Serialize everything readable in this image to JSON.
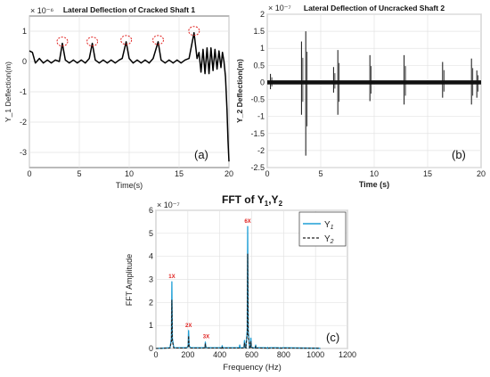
{
  "chart_data": [
    {
      "type": "line",
      "title": "Lateral Deflection of Cracked Shaft 1",
      "xlabel": "Time(s)",
      "ylabel": "Y_1 Deflection(m)",
      "y_exponent": "× 10⁻⁶",
      "xlim": [
        0,
        20
      ],
      "ylim": [
        -3.5,
        1.5
      ],
      "x_ticks": [
        "0",
        "5",
        "10",
        "15",
        "20"
      ],
      "y_ticks": [
        "1",
        "0",
        "-1",
        "-2",
        "-3"
      ],
      "panel_label": "(a)",
      "series": [
        {
          "values": [
            [
              0.0,
              0.35
            ],
            [
              0.3,
              0.3
            ],
            [
              0.6,
              -0.05
            ],
            [
              1.0,
              0.1
            ],
            [
              1.4,
              -0.05
            ],
            [
              1.8,
              0.05
            ],
            [
              2.2,
              -0.05
            ],
            [
              2.6,
              0.05
            ],
            [
              3.0,
              0.0
            ],
            [
              3.3,
              0.6
            ],
            [
              3.6,
              0.05
            ],
            [
              4.0,
              -0.05
            ],
            [
              4.4,
              0.05
            ],
            [
              4.8,
              -0.05
            ],
            [
              5.2,
              0.05
            ],
            [
              5.6,
              -0.05
            ],
            [
              6.0,
              0.1
            ],
            [
              6.3,
              0.6
            ],
            [
              6.6,
              0.05
            ],
            [
              7.0,
              -0.05
            ],
            [
              7.4,
              0.05
            ],
            [
              7.8,
              -0.05
            ],
            [
              8.2,
              0.05
            ],
            [
              8.6,
              -0.05
            ],
            [
              9.0,
              0.05
            ],
            [
              9.3,
              0.1
            ],
            [
              9.7,
              0.65
            ],
            [
              10.0,
              0.1
            ],
            [
              10.4,
              -0.05
            ],
            [
              10.8,
              0.05
            ],
            [
              11.2,
              -0.05
            ],
            [
              11.6,
              0.05
            ],
            [
              12.0,
              -0.05
            ],
            [
              12.4,
              0.1
            ],
            [
              12.9,
              0.65
            ],
            [
              13.2,
              0.05
            ],
            [
              13.6,
              -0.05
            ],
            [
              14.0,
              0.05
            ],
            [
              14.4,
              -0.05
            ],
            [
              14.8,
              0.05
            ],
            [
              15.2,
              -0.05
            ],
            [
              15.6,
              0.05
            ],
            [
              16.0,
              0.1
            ],
            [
              16.5,
              0.95
            ],
            [
              16.8,
              0.1
            ],
            [
              17.0,
              0.3
            ],
            [
              17.2,
              -0.35
            ],
            [
              17.4,
              0.4
            ],
            [
              17.6,
              -0.4
            ],
            [
              17.8,
              0.45
            ],
            [
              18.0,
              -0.4
            ],
            [
              18.2,
              0.45
            ],
            [
              18.4,
              -0.3
            ],
            [
              18.6,
              0.4
            ],
            [
              18.8,
              -0.25
            ],
            [
              19.0,
              0.35
            ],
            [
              19.2,
              -0.2
            ],
            [
              19.35,
              0.3
            ],
            [
              19.5,
              0.0
            ],
            [
              19.65,
              -0.5
            ],
            [
              19.8,
              -1.6
            ],
            [
              19.9,
              -2.6
            ],
            [
              20.0,
              -3.3
            ]
          ]
        }
      ],
      "annotations": [
        "red dashed circles around periodic peaks at ~3.3 s, 6.3 s, 9.7 s, 12.9 s, 16.5 s"
      ]
    },
    {
      "type": "line",
      "title": "Lateral Deflection of Uncracked Shaft 2",
      "xlabel": "Time (s)",
      "ylabel": "Y_2 Deflection(m)",
      "y_exponent": "× 10⁻⁷",
      "xlim": [
        0,
        20
      ],
      "ylim": [
        -2.5,
        2.0
      ],
      "x_ticks": [
        "0",
        "5",
        "10",
        "15",
        "20"
      ],
      "y_ticks": [
        "2",
        "1.5",
        "1",
        "0.5",
        "0",
        "-0.5",
        "-1",
        "-1.5",
        "-2",
        "-2.5"
      ],
      "panel_label": "(b)",
      "band_amplitude": 0.06,
      "spikes": [
        {
          "x": 0.3,
          "max": 0.25,
          "min": -0.2
        },
        {
          "x": 3.2,
          "max": 1.2,
          "min": -0.95
        },
        {
          "x": 3.6,
          "max": 1.5,
          "min": -2.15
        },
        {
          "x": 6.2,
          "max": 0.45,
          "min": -0.3
        },
        {
          "x": 6.6,
          "max": 0.95,
          "min": -0.95
        },
        {
          "x": 9.6,
          "max": 0.8,
          "min": -0.55
        },
        {
          "x": 12.8,
          "max": 0.8,
          "min": -0.65
        },
        {
          "x": 16.4,
          "max": 0.6,
          "min": -0.45
        },
        {
          "x": 19.1,
          "max": 0.7,
          "min": -0.65
        },
        {
          "x": 19.6,
          "max": 0.35,
          "min": -0.45
        }
      ]
    },
    {
      "type": "line",
      "title": "FFT of  Y",
      "title_sub1": "1",
      "title_mid": ",Y",
      "title_sub2": "2",
      "xlabel": "Frequency (Hz)",
      "ylabel": "FFT Amplitude",
      "y_exponent": "× 10⁻⁷",
      "xlim": [
        0,
        1200
      ],
      "ylim": [
        0,
        6
      ],
      "x_ticks": [
        "0",
        "200",
        "400",
        "600",
        "800",
        "1000",
        "1200"
      ],
      "y_ticks": [
        "6",
        "5",
        "4",
        "3",
        "2",
        "1",
        "0"
      ],
      "panel_label": "(c)",
      "legend": {
        "position": "top-right",
        "entries": [
          {
            "name": "Y",
            "sub": "1"
          },
          {
            "name": "Y",
            "sub": "2"
          }
        ]
      },
      "peak_labels": [
        {
          "x": 100,
          "y": 2.9,
          "text": "1X"
        },
        {
          "x": 205,
          "y": 0.78,
          "text": "2X"
        },
        {
          "x": 315,
          "y": 0.3,
          "text": "3X"
        },
        {
          "x": 575,
          "y": 5.3,
          "text": "6X"
        }
      ],
      "series": [
        {
          "name": "Y1",
          "color": "#1f9fd6",
          "peaks": [
            [
              100,
              2.9
            ],
            [
              205,
              0.78
            ],
            [
              310,
              0.28
            ],
            [
              415,
              0.12
            ],
            [
              525,
              0.15
            ],
            [
              555,
              0.35
            ],
            [
              575,
              5.3
            ],
            [
              595,
              0.45
            ],
            [
              625,
              0.15
            ],
            [
              700,
              0.05
            ],
            [
              780,
              0.04
            ]
          ]
        },
        {
          "name": "Y2",
          "color": "#222222",
          "peaks": [
            [
              100,
              2.1
            ],
            [
              205,
              0.55
            ],
            [
              310,
              0.2
            ],
            [
              415,
              0.08
            ],
            [
              555,
              0.25
            ],
            [
              575,
              4.1
            ],
            [
              595,
              0.3
            ],
            [
              625,
              0.1
            ]
          ]
        }
      ]
    }
  ]
}
